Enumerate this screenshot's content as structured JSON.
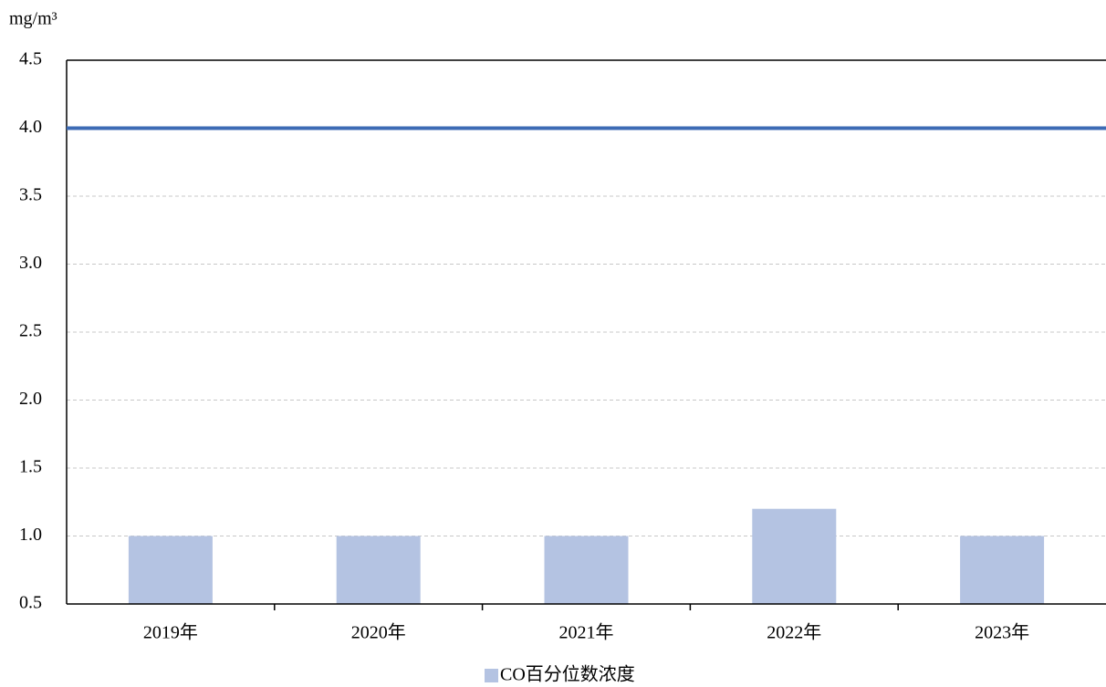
{
  "chart_data": {
    "type": "bar",
    "y_unit": "mg/m³",
    "categories": [
      "2019年",
      "2020年",
      "2021年",
      "2022年",
      "2023年"
    ],
    "series": [
      {
        "name": "CO百分位数浓度",
        "color": "#b4c3e2",
        "values": [
          1.0,
          1.0,
          1.0,
          1.2,
          1.0
        ]
      }
    ],
    "reference_line": {
      "value": 4,
      "color": "#3d6bb5"
    },
    "ylim": [
      0.5,
      4.5
    ],
    "yticks": [
      4.5,
      {
        "value": 4,
        "label": "4.0"
      },
      3.5,
      {
        "value": 3,
        "label": "3.0"
      },
      2.5,
      {
        "value": 2,
        "label": "2.0"
      },
      1.5,
      {
        "value": 1,
        "label": "1.0"
      },
      0.5
    ],
    "grid": true,
    "legend": "bottom"
  }
}
